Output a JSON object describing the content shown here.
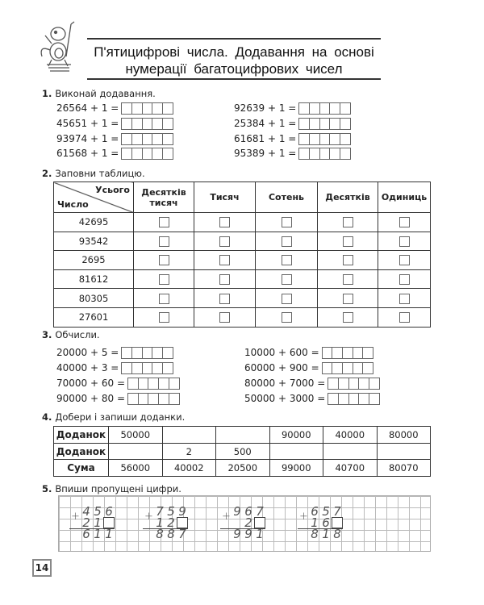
{
  "header": {
    "title_line1": "П'ятицифрові числа. Додавання на основі",
    "title_line2": "нумерації багатоцифрових чисел",
    "mascot": "monkey-hockey-mascot"
  },
  "task1": {
    "num": "1.",
    "heading": "Виконай додавання.",
    "left": [
      "26564 + 1 =",
      "45651 + 1 =",
      "93974 + 1 =",
      "61568 + 1 ="
    ],
    "right": [
      "92639 + 1 =",
      "25384 + 1 =",
      "61681 + 1 =",
      "95389 + 1 ="
    ]
  },
  "task2": {
    "num": "2.",
    "heading": "Заповни таблицю.",
    "corner_top": "Усього",
    "corner_bottom": "Число",
    "columns": [
      "Десятків тисяч",
      "Тисяч",
      "Сотень",
      "Десятків",
      "Одиниць"
    ],
    "numbers": [
      "42695",
      "93542",
      "2695",
      "81612",
      "80305",
      "27601"
    ]
  },
  "task3": {
    "num": "3.",
    "heading": "Обчисли.",
    "left": [
      "20000 + 5 =",
      "40000 + 3 =",
      "70000 + 60 =",
      "90000 + 80 ="
    ],
    "right": [
      "10000 + 600 =",
      "60000 + 900 =",
      "80000 + 7000 =",
      "50000 + 3000 ="
    ]
  },
  "task4": {
    "num": "4.",
    "heading": "Добери і запиши доданки.",
    "rows": [
      {
        "label": "Доданок",
        "cells": [
          "50000",
          "",
          "",
          "90000",
          "40000",
          "80000"
        ]
      },
      {
        "label": "Доданок",
        "cells": [
          "",
          "2",
          "500",
          "",
          "",
          ""
        ]
      },
      {
        "label": "Сума",
        "cells": [
          "56000",
          "40002",
          "20500",
          "99000",
          "40700",
          "80070"
        ]
      }
    ]
  },
  "task5": {
    "num": "5.",
    "heading": "Впиши пропущені цифри.",
    "plus": "+",
    "problems": [
      {
        "top": [
          "4",
          "5",
          "6"
        ],
        "second": [
          "2",
          "1",
          null
        ],
        "result": [
          "6",
          "1",
          "1"
        ]
      },
      {
        "top": [
          "7",
          "5",
          "9"
        ],
        "second": [
          "1",
          "2",
          null
        ],
        "result": [
          "8",
          "8",
          "7"
        ]
      },
      {
        "top": [
          "9",
          "6",
          "7"
        ],
        "second": [
          "",
          "2",
          null
        ],
        "result": [
          "9",
          "9",
          "1"
        ]
      },
      {
        "top": [
          "6",
          "5",
          "7"
        ],
        "second": [
          "1",
          "6",
          null
        ],
        "result": [
          "8",
          "1",
          "8"
        ]
      }
    ]
  },
  "page_number": "14"
}
